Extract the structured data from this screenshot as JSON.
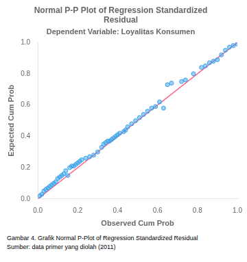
{
  "chart_data": {
    "type": "scatter",
    "title": "Normal P-P Plot of Regression Standardized\nResidual",
    "subtitle": "Dependent Variable: Loyalitas Konsumen",
    "xlabel": "Observed Cum Prob",
    "ylabel": "Expected Cum Prob",
    "xlim": [
      0.0,
      1.0
    ],
    "ylim": [
      0.0,
      1.0
    ],
    "xticks": [
      {
        "value": 0.0,
        "label": "0.0"
      },
      0.2,
      0.4,
      0.6,
      0.8,
      {
        "value": 1.0,
        "label": "1.0"
      }
    ],
    "yticks": [
      {
        "value": 0.0,
        "label": "0.0"
      },
      0.2,
      0.4,
      0.6,
      0.8,
      {
        "value": 1.0,
        "label": "1.0"
      }
    ],
    "grid": false,
    "series": [
      {
        "type": "scatter",
        "marker": "circle",
        "x": [
          0.01,
          0.02,
          0.03,
          0.04,
          0.05,
          0.06,
          0.07,
          0.08,
          0.09,
          0.1,
          0.11,
          0.12,
          0.13,
          0.14,
          0.15,
          0.16,
          0.17,
          0.18,
          0.19,
          0.2,
          0.21,
          0.22,
          0.24,
          0.26,
          0.28,
          0.3,
          0.32,
          0.33,
          0.34,
          0.35,
          0.36,
          0.37,
          0.38,
          0.39,
          0.4,
          0.41,
          0.43,
          0.44,
          0.45,
          0.47,
          0.49,
          0.51,
          0.53,
          0.55,
          0.57,
          0.59,
          0.61,
          0.63,
          0.65,
          0.67,
          0.72,
          0.74,
          0.78,
          0.82,
          0.84,
          0.86,
          0.88,
          0.9,
          0.92,
          0.94,
          0.96,
          0.98,
          1.0
        ],
        "values": [
          0.02,
          0.03,
          0.05,
          0.06,
          0.07,
          0.08,
          0.09,
          0.1,
          0.11,
          0.13,
          0.14,
          0.15,
          0.16,
          0.18,
          0.15,
          0.2,
          0.21,
          0.21,
          0.22,
          0.23,
          0.24,
          0.25,
          0.26,
          0.27,
          0.28,
          0.3,
          0.33,
          0.35,
          0.36,
          0.37,
          0.37,
          0.38,
          0.39,
          0.4,
          0.41,
          0.42,
          0.43,
          0.44,
          0.46,
          0.48,
          0.5,
          0.52,
          0.54,
          0.56,
          0.58,
          0.59,
          0.62,
          0.58,
          0.73,
          0.74,
          0.75,
          0.76,
          0.8,
          0.84,
          0.85,
          0.87,
          0.88,
          0.89,
          0.92,
          0.95,
          0.97,
          0.98,
          0.99
        ]
      },
      {
        "type": "line",
        "line_style": "solid",
        "x": [
          0.0,
          1.0
        ],
        "values": [
          0.0,
          1.0
        ]
      }
    ],
    "annotations": [
      "Gambar 4. Grafik Normal P-Plot of Regression Standardized Residual",
      "Sumber: data primer yang diolah (2011)"
    ]
  }
}
